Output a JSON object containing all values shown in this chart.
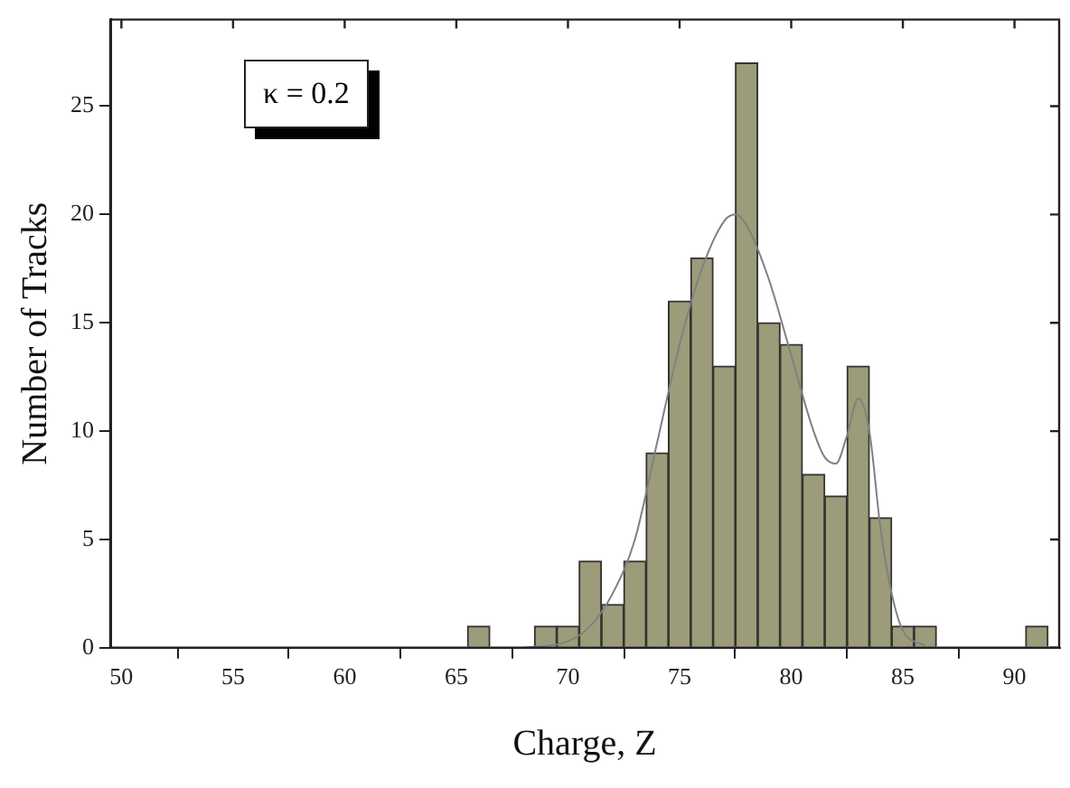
{
  "chart_data": {
    "type": "histogram",
    "xlabel": "Charge, Z",
    "ylabel": "Number of Tracks",
    "annotations": [
      "κ = 0.2"
    ],
    "bins": [
      65.5,
      66.5,
      67.5,
      68.5,
      69.5,
      70.5,
      71.5,
      72.5,
      73.5,
      74.5,
      75.5,
      76.5,
      77.5,
      78.5,
      79.5,
      80.5,
      81.5,
      82.5,
      83.5,
      84.5,
      85.5,
      86.5,
      87.5,
      88.5,
      89.5,
      90.5,
      91.5
    ],
    "values": [
      1,
      0,
      0,
      1,
      1,
      4,
      2,
      4,
      9,
      16,
      18,
      13,
      27,
      15,
      14,
      8,
      7,
      13,
      6,
      1,
      1,
      0,
      0,
      0,
      0,
      1
    ],
    "color": "#9c9c7a",
    "series": [
      {
        "type": "line",
        "color": "#808080",
        "x": [
          68,
          70,
          71,
          72,
          73,
          74,
          75,
          76,
          77,
          77.5,
          78,
          79,
          80,
          81,
          81.5,
          82,
          82.5,
          83,
          83.5,
          84,
          84.5,
          85,
          86
        ],
        "values": [
          0,
          0.3,
          1,
          2.5,
          5,
          9.5,
          14,
          17.5,
          19.7,
          20,
          19.5,
          17,
          13.5,
          10,
          8.8,
          8.5,
          9.8,
          11.5,
          10,
          5.5,
          2.5,
          0.8,
          0.1
        ]
      }
    ],
    "xlim": [
      49.5,
      92
    ],
    "xticks": [
      50,
      55,
      60,
      65,
      70,
      75,
      80,
      85,
      90
    ],
    "ylim": [
      0,
      29
    ],
    "yticks": [
      0,
      5,
      10,
      15,
      20,
      25
    ],
    "grid": false,
    "legend": false,
    "marker": "none"
  }
}
